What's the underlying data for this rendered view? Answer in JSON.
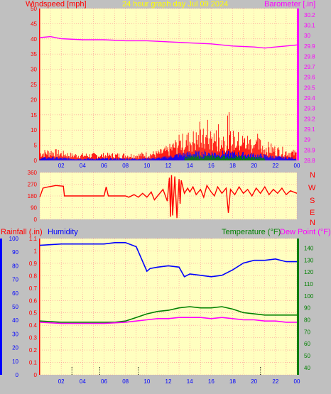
{
  "colors": {
    "plot_bg": "#ffffc0",
    "panel_bg": "#c0c0c0",
    "grid": "#ff9090",
    "wind_avg": "#ff0000",
    "wind_gust_base": "#0000ff",
    "wind_lull": "#008000",
    "barometer": "#ff00ff",
    "direction": "#ff0000",
    "humidity": "#0000ff",
    "temperature": "#008000",
    "dew_point": "#ff00ff",
    "rainfall": "#ff0000",
    "title": "#ffff00"
  },
  "header": {
    "windspeed_label": "Windspeed [mph]",
    "title": "24 hour graph day  Jul 09 2024",
    "barometer_label": "Barometer [.in]"
  },
  "footer": {
    "rainfall_label": "Rainfall (.in)",
    "humidity_label": "Humidity",
    "temperature_label": "Temperature (°F)",
    "dewpoint_label": "Dew Point (°F)"
  },
  "compass": [
    "N",
    "W",
    "S",
    "E",
    "N"
  ],
  "chart_data": [
    {
      "type": "line",
      "name": "wind-barometer",
      "x_ticks": [
        "02",
        "04",
        "06",
        "08",
        "10",
        "12",
        "14",
        "16",
        "18",
        "20",
        "22",
        "00"
      ],
      "y_left_ticks": [
        0,
        5,
        10,
        15,
        20,
        25,
        30,
        35,
        40,
        45,
        50
      ],
      "y_left_range": [
        0,
        50
      ],
      "y_right_ticks": [
        "28.8",
        "28.9",
        "29",
        "29.1",
        "29.2",
        "29.3",
        "29.4",
        "29.5",
        "29.6",
        "29.7",
        "29.8",
        "29.9",
        "30",
        "30.1",
        "30.2"
      ],
      "y_right_range": [
        28.8,
        30.26
      ],
      "barometer_series": [
        [
          0,
          29.98
        ],
        [
          1,
          29.99
        ],
        [
          2,
          29.97
        ],
        [
          4,
          29.96
        ],
        [
          6,
          29.96
        ],
        [
          8,
          29.95
        ],
        [
          10,
          29.95
        ],
        [
          12,
          29.94
        ],
        [
          14,
          29.93
        ],
        [
          16,
          29.92
        ],
        [
          18,
          29.9
        ],
        [
          20,
          29.89
        ],
        [
          21,
          29.88
        ],
        [
          22,
          29.89
        ],
        [
          23,
          29.9
        ],
        [
          24,
          29.91
        ]
      ],
      "wind_profile": [
        [
          0,
          2
        ],
        [
          1,
          2.5
        ],
        [
          3,
          1.5
        ],
        [
          5,
          1.5
        ],
        [
          7,
          1.5
        ],
        [
          9,
          1.5
        ],
        [
          11,
          2
        ],
        [
          12,
          3
        ],
        [
          13,
          5
        ],
        [
          14,
          6
        ],
        [
          16,
          6.5
        ],
        [
          18,
          6
        ],
        [
          20,
          5
        ],
        [
          22,
          3
        ],
        [
          24,
          2
        ]
      ]
    },
    {
      "type": "line",
      "name": "wind-direction",
      "x_range": [
        0,
        24
      ],
      "y_ticks": [
        0,
        90,
        180,
        270,
        360
      ],
      "y_range": [
        0,
        360
      ],
      "series": [
        [
          0,
          170
        ],
        [
          0.3,
          240
        ],
        [
          0.8,
          250
        ],
        [
          1.5,
          260
        ],
        [
          2.2,
          255
        ],
        [
          2.3,
          180
        ],
        [
          3,
          180
        ],
        [
          4,
          180
        ],
        [
          5,
          180
        ],
        [
          6,
          180
        ],
        [
          6.2,
          250
        ],
        [
          6.4,
          180
        ],
        [
          7,
          180
        ],
        [
          8,
          180
        ],
        [
          8.3,
          170
        ],
        [
          8.8,
          190
        ],
        [
          9.2,
          170
        ],
        [
          9.6,
          200
        ],
        [
          10,
          170
        ],
        [
          10.4,
          210
        ],
        [
          10.7,
          150
        ],
        [
          11,
          180
        ],
        [
          11.5,
          230
        ],
        [
          11.9,
          140
        ],
        [
          12.1,
          320
        ],
        [
          12.2,
          20
        ],
        [
          12.3,
          340
        ],
        [
          12.4,
          30
        ],
        [
          12.6,
          330
        ],
        [
          12.8,
          10
        ],
        [
          13,
          310
        ],
        [
          13.1,
          120
        ],
        [
          13.2,
          300
        ],
        [
          13.5,
          200
        ],
        [
          13.8,
          240
        ],
        [
          14,
          210
        ],
        [
          14.3,
          250
        ],
        [
          14.6,
          190
        ],
        [
          15,
          230
        ],
        [
          15.3,
          170
        ],
        [
          15.6,
          260
        ],
        [
          16,
          210
        ],
        [
          16.3,
          180
        ],
        [
          16.6,
          250
        ],
        [
          17,
          200
        ],
        [
          17.4,
          240
        ],
        [
          17.6,
          50
        ],
        [
          17.8,
          230
        ],
        [
          18.2,
          190
        ],
        [
          18.6,
          250
        ],
        [
          19,
          200
        ],
        [
          19.4,
          230
        ],
        [
          19.8,
          180
        ],
        [
          20.2,
          240
        ],
        [
          20.6,
          200
        ],
        [
          21,
          250
        ],
        [
          21.4,
          190
        ],
        [
          21.8,
          230
        ],
        [
          22.2,
          200
        ],
        [
          22.6,
          240
        ],
        [
          23,
          190
        ],
        [
          23.4,
          220
        ],
        [
          24,
          200
        ]
      ]
    },
    {
      "type": "line",
      "name": "temperature-humidity",
      "x_ticks": [
        "02",
        "04",
        "06",
        "08",
        "10",
        "12",
        "14",
        "16",
        "18",
        "20",
        "22",
        "00"
      ],
      "humidity_ticks": [
        0,
        10,
        20,
        30,
        40,
        50,
        60,
        70,
        80,
        90,
        100
      ],
      "humidity_range": [
        0,
        100
      ],
      "rainfall_ticks": [
        "0",
        "0.1",
        "0.2",
        "0.3",
        "0.4",
        "0.5",
        "0.6",
        "0.7",
        "0.8",
        "0.9",
        "1",
        "1.1"
      ],
      "rainfall_range": [
        0,
        1.1
      ],
      "temp_ticks": [
        40,
        50,
        60,
        70,
        80,
        90,
        100,
        110,
        120,
        130,
        140
      ],
      "temp_range": [
        34,
        148
      ],
      "humidity": [
        [
          0,
          95
        ],
        [
          2,
          96
        ],
        [
          4,
          96
        ],
        [
          6,
          96
        ],
        [
          7,
          97
        ],
        [
          8,
          97
        ],
        [
          9,
          94
        ],
        [
          9.5,
          85
        ],
        [
          10,
          76
        ],
        [
          10.3,
          78
        ],
        [
          11,
          79
        ],
        [
          12,
          80
        ],
        [
          13,
          79
        ],
        [
          13.5,
          72
        ],
        [
          14,
          74
        ],
        [
          15,
          73
        ],
        [
          16,
          72
        ],
        [
          17,
          73
        ],
        [
          18,
          77
        ],
        [
          19,
          82
        ],
        [
          20,
          84
        ],
        [
          21,
          84
        ],
        [
          22,
          85
        ],
        [
          23,
          83
        ],
        [
          24,
          83
        ]
      ],
      "temperature": [
        [
          0,
          79
        ],
        [
          2,
          78
        ],
        [
          4,
          78
        ],
        [
          6,
          78
        ],
        [
          7,
          78
        ],
        [
          8,
          79
        ],
        [
          9,
          82
        ],
        [
          10,
          85
        ],
        [
          11,
          87
        ],
        [
          12,
          88
        ],
        [
          13,
          90
        ],
        [
          14,
          91
        ],
        [
          15,
          90
        ],
        [
          16,
          90
        ],
        [
          17,
          91
        ],
        [
          18,
          89
        ],
        [
          19,
          86
        ],
        [
          20,
          85
        ],
        [
          21,
          84
        ],
        [
          22,
          84
        ],
        [
          23,
          84
        ],
        [
          24,
          84
        ]
      ],
      "dew_point": [
        [
          0,
          78
        ],
        [
          2,
          77
        ],
        [
          4,
          77
        ],
        [
          6,
          77
        ],
        [
          8,
          78
        ],
        [
          9,
          79
        ],
        [
          10,
          80
        ],
        [
          11,
          81
        ],
        [
          12,
          81
        ],
        [
          13,
          82
        ],
        [
          14,
          82
        ],
        [
          15,
          82
        ],
        [
          16,
          81
        ],
        [
          17,
          82
        ],
        [
          18,
          81
        ],
        [
          19,
          80
        ],
        [
          20,
          80
        ],
        [
          21,
          79
        ],
        [
          22,
          79
        ],
        [
          23,
          78
        ],
        [
          24,
          78
        ]
      ],
      "rain_marks": [
        3,
        5.6,
        9.2,
        20.6
      ]
    }
  ]
}
